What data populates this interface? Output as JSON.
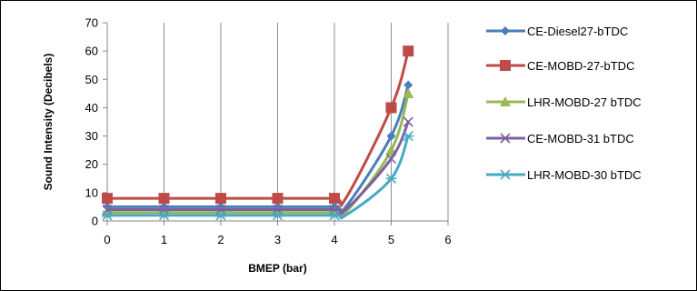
{
  "chart_data": {
    "type": "line",
    "xlabel": "BMEP (bar)",
    "ylabel": "Sound Intensity (Decibels)",
    "xlim": [
      0,
      6
    ],
    "ylim": [
      0,
      70
    ],
    "xticks": [
      "0",
      "1",
      "2",
      "3",
      "4",
      "5",
      "6"
    ],
    "yticks": [
      "0",
      "10",
      "20",
      "30",
      "40",
      "50",
      "60",
      "70"
    ],
    "grid": "vertical",
    "legend_position": "right",
    "series": [
      {
        "name": "CE-Diesel27-bTDC",
        "color": "#4a7ebb",
        "marker": "diamond",
        "x": [
          0,
          1,
          2,
          3,
          4,
          4.2,
          5,
          5.3
        ],
        "y": [
          5,
          5,
          5,
          5,
          5,
          5,
          30,
          48
        ]
      },
      {
        "name": "CE-MOBD-27-bTDC",
        "color": "#be4b48",
        "marker": "square",
        "x": [
          0,
          1,
          2,
          3,
          4,
          4.2,
          5,
          5.3
        ],
        "y": [
          8,
          8,
          8,
          8,
          8,
          8,
          40,
          60
        ]
      },
      {
        "name": "LHR-MOBD-27 bTDC",
        "color": "#98b954",
        "marker": "triangle",
        "x": [
          0,
          1,
          2,
          3,
          4,
          4.2,
          5,
          5.3
        ],
        "y": [
          3,
          3,
          3,
          3,
          3,
          3,
          25,
          45
        ]
      },
      {
        "name": "CE-MOBD-31 bTDC",
        "color": "#7d60a0",
        "marker": "x",
        "x": [
          0,
          1,
          2,
          3,
          4,
          4.2,
          5,
          5.3
        ],
        "y": [
          4,
          4,
          4,
          4,
          4,
          4,
          22,
          35
        ]
      },
      {
        "name": "LHR-MOBD-30 bTDC",
        "color": "#46aac5",
        "marker": "star",
        "x": [
          0,
          1,
          2,
          3,
          4,
          4.2,
          5,
          5.3
        ],
        "y": [
          2,
          2,
          2,
          2,
          2,
          2,
          15,
          30
        ]
      }
    ]
  }
}
